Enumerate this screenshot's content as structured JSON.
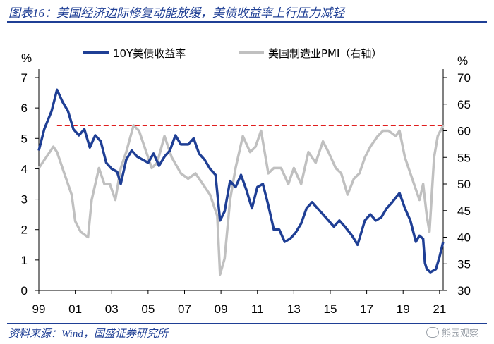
{
  "header": {
    "title": "图表16：美国经济边际修复动能放缓，美债收益率上行压力减轻"
  },
  "footer": {
    "source": "资料来源：Wind，国盛证券研究所",
    "watermark": "熊园观察"
  },
  "colors": {
    "yield": "#1f3f95",
    "pmi": "#c0c0c0",
    "reference": "#e01e1e"
  },
  "chart_data": {
    "type": "line",
    "title": "美国经济边际修复动能放缓，美债收益率上行压力减轻",
    "left_axis": {
      "label": "%",
      "ylim": [
        0,
        7
      ],
      "ticks": [
        "0",
        "1",
        "2",
        "3",
        "4",
        "5",
        "6",
        "7"
      ]
    },
    "right_axis": {
      "label": "%",
      "ylim": [
        30,
        70
      ],
      "ticks": [
        "30",
        "35",
        "40",
        "45",
        "50",
        "55",
        "60",
        "65",
        "70"
      ]
    },
    "x_axis": {
      "xlim": [
        1999.0,
        2021.2
      ],
      "ticks": [
        "99",
        "01",
        "03",
        "05",
        "07",
        "09",
        "11",
        "13",
        "15",
        "17",
        "19",
        "21"
      ]
    },
    "reference_line": {
      "axis": "right",
      "value": 61
    },
    "series": [
      {
        "name": "10Y美债收益率",
        "axis": "left",
        "x": [
          1999.0,
          1999.3,
          1999.7,
          2000.0,
          2000.3,
          2000.6,
          2000.9,
          2001.2,
          2001.5,
          2001.8,
          2002.1,
          2002.4,
          2002.7,
          2003.0,
          2003.3,
          2003.5,
          2003.8,
          2004.1,
          2004.4,
          2004.7,
          2005.0,
          2005.3,
          2005.6,
          2005.9,
          2006.2,
          2006.5,
          2006.8,
          2007.2,
          2007.5,
          2007.8,
          2008.1,
          2008.4,
          2008.7,
          2008.95,
          2009.2,
          2009.5,
          2009.8,
          2010.1,
          2010.4,
          2010.7,
          2011.0,
          2011.3,
          2011.6,
          2011.9,
          2012.2,
          2012.5,
          2012.8,
          2013.1,
          2013.4,
          2013.7,
          2014.0,
          2014.3,
          2014.6,
          2014.9,
          2015.2,
          2015.5,
          2015.8,
          2016.2,
          2016.5,
          2016.9,
          2017.2,
          2017.5,
          2017.8,
          2018.1,
          2018.4,
          2018.8,
          2019.1,
          2019.4,
          2019.7,
          2019.9,
          2020.1,
          2020.2,
          2020.3,
          2020.5,
          2020.8,
          2021.0,
          2021.2
        ],
        "values": [
          4.6,
          5.3,
          5.9,
          6.6,
          6.2,
          5.9,
          5.3,
          5.1,
          5.3,
          4.7,
          5.1,
          4.9,
          4.2,
          4.0,
          3.9,
          3.5,
          4.3,
          4.6,
          4.4,
          4.3,
          4.2,
          4.5,
          4.1,
          4.4,
          4.6,
          5.1,
          4.8,
          4.8,
          5.0,
          4.5,
          4.3,
          4.0,
          3.8,
          2.3,
          2.6,
          3.6,
          3.4,
          3.8,
          3.3,
          2.7,
          3.4,
          3.5,
          2.8,
          2.0,
          2.0,
          1.6,
          1.7,
          1.9,
          2.2,
          2.7,
          2.9,
          2.7,
          2.5,
          2.3,
          2.1,
          2.3,
          2.1,
          1.8,
          1.5,
          2.3,
          2.5,
          2.3,
          2.4,
          2.7,
          2.9,
          3.2,
          2.7,
          2.3,
          1.6,
          1.8,
          1.7,
          0.9,
          0.7,
          0.6,
          0.7,
          1.1,
          1.6
        ]
      },
      {
        "name": "美国制造业PMI（右轴）",
        "axis": "right",
        "x": [
          1999.0,
          1999.4,
          1999.8,
          2000.0,
          2000.4,
          2000.8,
          2001.0,
          2001.3,
          2001.7,
          2001.9,
          2002.3,
          2002.6,
          2002.9,
          2003.2,
          2003.5,
          2003.8,
          2004.2,
          2004.5,
          2004.8,
          2005.2,
          2005.5,
          2005.9,
          2006.3,
          2006.8,
          2007.2,
          2007.6,
          2008.0,
          2008.4,
          2008.8,
          2008.95,
          2009.2,
          2009.5,
          2009.8,
          2010.2,
          2010.6,
          2010.9,
          2011.2,
          2011.6,
          2011.9,
          2012.3,
          2012.7,
          2013.0,
          2013.4,
          2013.8,
          2014.2,
          2014.6,
          2014.9,
          2015.3,
          2015.6,
          2015.95,
          2016.3,
          2016.6,
          2016.9,
          2017.2,
          2017.6,
          2017.9,
          2018.2,
          2018.6,
          2018.8,
          2019.1,
          2019.5,
          2019.9,
          2020.1,
          2020.3,
          2020.45,
          2020.7,
          2020.9,
          2021.2
        ],
        "values": [
          53,
          55,
          57,
          56,
          52,
          48,
          43,
          41,
          40,
          47,
          53,
          50,
          50,
          47,
          53,
          56,
          61,
          60,
          57,
          53,
          54,
          59,
          55,
          52,
          51,
          52,
          50,
          48,
          44,
          33,
          36,
          47,
          53,
          59,
          56,
          57,
          60,
          52,
          53,
          53,
          50,
          53,
          50,
          56,
          54,
          58,
          56,
          53,
          52,
          48,
          51,
          52,
          55,
          57,
          59,
          60,
          60,
          59,
          60,
          55,
          51,
          47,
          50,
          44,
          41,
          55,
          59,
          61
        ]
      }
    ],
    "legend": [
      {
        "label": "10Y美债收益率"
      },
      {
        "label": "美国制造业PMI（右轴）"
      }
    ]
  }
}
